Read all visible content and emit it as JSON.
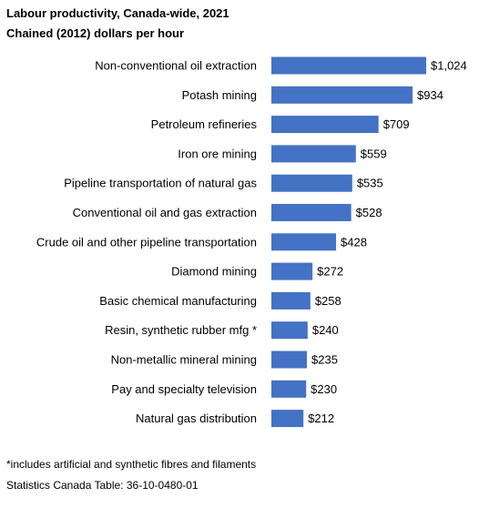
{
  "chart_data": {
    "type": "bar",
    "orientation": "horizontal",
    "title": "Labour productivity, Canada-wide, 2021",
    "subtitle": "Chained (2012) dollars per hour",
    "categories": [
      "Non-conventional oil extraction",
      "Potash mining",
      "Petroleum refineries",
      "Iron ore mining",
      "Pipeline transportation of natural gas",
      "Conventional oil and gas extraction",
      "Crude oil and other pipeline transportation",
      "Diamond mining",
      "Basic chemical manufacturing",
      "Resin, synthetic rubber mfg *",
      "Non-metallic mineral mining",
      "Pay and specialty television",
      "Natural gas distribution"
    ],
    "values": [
      1024,
      934,
      709,
      559,
      535,
      528,
      428,
      272,
      258,
      240,
      235,
      230,
      212
    ],
    "value_labels": [
      "$1,024",
      "$934",
      "$709",
      "$559",
      "$535",
      "$528",
      "$428",
      "$272",
      "$258",
      "$240",
      "$235",
      "$230",
      "$212"
    ],
    "xlim": [
      0,
      1024
    ],
    "grid": false,
    "legend": "none",
    "bar_color": "#4472c4"
  },
  "footnote": "*includes artificial and synthetic fibres and filaments",
  "source": "Statistics Canada Table: 36-10-0480-01"
}
